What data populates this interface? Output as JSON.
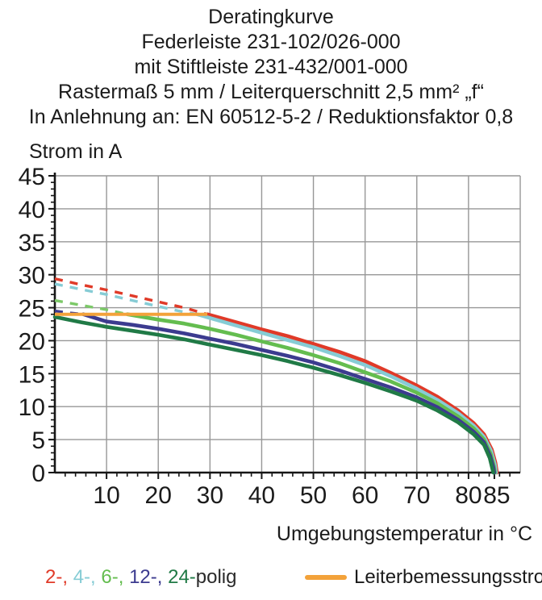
{
  "header": {
    "lines": [
      "Deratingkurve",
      "Federleiste 231-102/026-000",
      "mit Stiftleiste 231-432/001-000",
      "Rastermaß 5 mm / Leiterquerschnitt 2,5 mm² „f“",
      "In Anlehnung an: EN 60512-5-2 / Reduktionsfaktor 0,8"
    ]
  },
  "chart_data": {
    "type": "line",
    "ylabel": "Strom in A",
    "xlabel": "Umgebungstemperatur in °C",
    "xlim": [
      0,
      90
    ],
    "ylim": [
      0,
      45
    ],
    "x_tick_values": [
      10,
      20,
      30,
      40,
      50,
      60,
      70,
      80,
      85
    ],
    "y_tick_values": [
      0,
      5,
      10,
      15,
      20,
      25,
      30,
      35,
      40,
      45
    ],
    "x_gridlines": [
      10,
      20,
      30,
      40,
      50,
      60,
      70,
      80
    ],
    "y_gridlines": [
      5,
      10,
      15,
      20,
      25,
      30,
      35,
      40,
      45
    ],
    "x_minor_step": 2,
    "y_minor_step": 1,
    "grid_color": "#979797",
    "axis_color": "#161616",
    "series": [
      {
        "name": "2-polig",
        "color": "#e03a28",
        "dashed_points": [
          [
            0,
            29.4
          ],
          [
            5,
            28.5
          ],
          [
            10,
            27.7
          ],
          [
            15,
            26.8
          ],
          [
            20,
            25.9
          ],
          [
            25,
            25.0
          ],
          [
            29.5,
            24.0
          ]
        ],
        "solid_points": [
          [
            29.5,
            24.0
          ],
          [
            35,
            22.8
          ],
          [
            40,
            21.7
          ],
          [
            45,
            20.7
          ],
          [
            50,
            19.5
          ],
          [
            55,
            18.3
          ],
          [
            60,
            16.9
          ],
          [
            65,
            15.1
          ],
          [
            70,
            13.2
          ],
          [
            74,
            11.5
          ],
          [
            78,
            9.4
          ],
          [
            81,
            7.5
          ],
          [
            83,
            5.8
          ],
          [
            84.5,
            3.5
          ],
          [
            85.2,
            1.5
          ],
          [
            85.5,
            0
          ]
        ]
      },
      {
        "name": "4-polig",
        "color": "#86ccd5",
        "dashed_points": [
          [
            0,
            28.6
          ],
          [
            5,
            27.8
          ],
          [
            10,
            27.0
          ],
          [
            15,
            26.1
          ],
          [
            20,
            25.2
          ],
          [
            24,
            24.5
          ],
          [
            27.5,
            24.0
          ]
        ],
        "solid_points": [
          [
            27.5,
            24.0
          ],
          [
            35,
            22.3
          ],
          [
            40,
            21.2
          ],
          [
            45,
            20.1
          ],
          [
            50,
            19.0
          ],
          [
            55,
            17.7
          ],
          [
            60,
            16.3
          ],
          [
            65,
            14.6
          ],
          [
            70,
            12.7
          ],
          [
            74,
            11.0
          ],
          [
            78,
            9.0
          ],
          [
            81,
            7.1
          ],
          [
            83,
            5.4
          ],
          [
            84.4,
            3.2
          ],
          [
            85.1,
            1.2
          ],
          [
            85.3,
            0
          ]
        ]
      },
      {
        "name": "6-polig",
        "color": "#64bd4f",
        "dash_color": "#7cc968",
        "dashed_points": [
          [
            0,
            26.1
          ],
          [
            5,
            25.4
          ],
          [
            10,
            24.7
          ],
          [
            14,
            24.0
          ]
        ],
        "solid_points": [
          [
            14,
            24.0
          ],
          [
            20,
            23.2
          ],
          [
            25,
            22.6
          ],
          [
            30,
            21.8
          ],
          [
            35,
            20.9
          ],
          [
            40,
            19.9
          ],
          [
            45,
            18.9
          ],
          [
            50,
            17.8
          ],
          [
            55,
            16.6
          ],
          [
            60,
            15.2
          ],
          [
            65,
            13.8
          ],
          [
            70,
            12.1
          ],
          [
            74,
            10.5
          ],
          [
            78,
            8.5
          ],
          [
            81,
            6.7
          ],
          [
            83,
            5.0
          ],
          [
            84.3,
            2.8
          ],
          [
            84.9,
            1.0
          ],
          [
            85.1,
            0
          ]
        ]
      },
      {
        "name": "12-polig",
        "color": "#3c3b8f",
        "dashed_points": [
          [
            0,
            24.5
          ],
          [
            3,
            24.2
          ],
          [
            5.5,
            24.0
          ]
        ],
        "solid_points": [
          [
            5.5,
            24.0
          ],
          [
            10,
            22.9
          ],
          [
            15,
            22.4
          ],
          [
            20,
            21.8
          ],
          [
            25,
            21.1
          ],
          [
            30,
            20.3
          ],
          [
            35,
            19.5
          ],
          [
            40,
            18.6
          ],
          [
            45,
            17.7
          ],
          [
            50,
            16.7
          ],
          [
            55,
            15.5
          ],
          [
            60,
            14.2
          ],
          [
            65,
            12.9
          ],
          [
            70,
            11.4
          ],
          [
            74,
            9.9
          ],
          [
            78,
            8.0
          ],
          [
            81,
            6.2
          ],
          [
            83,
            4.6
          ],
          [
            84.2,
            2.5
          ],
          [
            84.8,
            0.8
          ],
          [
            85,
            0
          ]
        ]
      },
      {
        "name": "24-polig",
        "color": "#207a46",
        "dashed_points": [],
        "solid_points": [
          [
            0,
            23.6
          ],
          [
            5,
            22.8
          ],
          [
            10,
            22.1
          ],
          [
            15,
            21.5
          ],
          [
            20,
            20.9
          ],
          [
            25,
            20.2
          ],
          [
            30,
            19.4
          ],
          [
            35,
            18.6
          ],
          [
            40,
            17.8
          ],
          [
            45,
            16.9
          ],
          [
            50,
            15.9
          ],
          [
            55,
            14.8
          ],
          [
            60,
            13.6
          ],
          [
            65,
            12.3
          ],
          [
            70,
            10.9
          ],
          [
            74,
            9.4
          ],
          [
            78,
            7.6
          ],
          [
            81,
            5.8
          ],
          [
            83,
            4.2
          ],
          [
            84.1,
            2.2
          ],
          [
            84.6,
            0.6
          ],
          [
            84.8,
            0
          ]
        ]
      }
    ],
    "rated_line": {
      "name": "Leiterbemessungsstrom",
      "color": "#f3a23a",
      "points": [
        [
          0,
          24
        ],
        [
          29.5,
          24
        ]
      ]
    }
  },
  "legend": {
    "pole_parts": [
      {
        "text": "2-, ",
        "color": "#e03a28"
      },
      {
        "text": "4-, ",
        "color": "#86ccd5"
      },
      {
        "text": "6-, ",
        "color": "#64bd4f"
      },
      {
        "text": "12-, ",
        "color": "#3c3b8f"
      },
      {
        "text": "24-",
        "color": "#207a46"
      },
      {
        "text": "polig",
        "color": "#2a2a2a"
      }
    ],
    "rated_current_label": "Leiterbemessungsstrom",
    "rated_current_color": "#f3a23a"
  }
}
